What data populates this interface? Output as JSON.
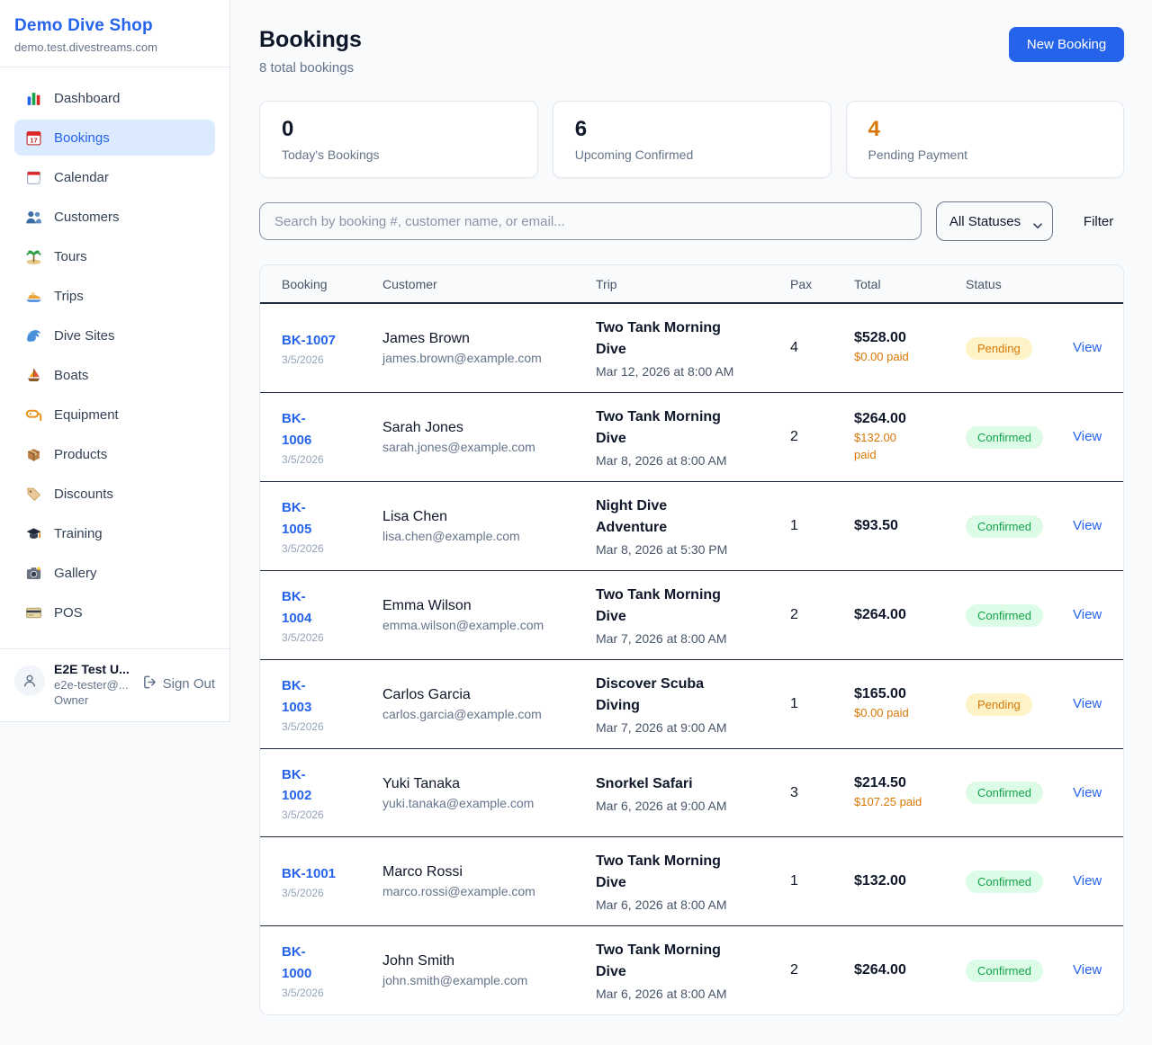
{
  "colors": {
    "primary": "#2563eb",
    "pending": "#d97706",
    "confirmed": "#16a34a"
  },
  "sidebar": {
    "shop_name": "Demo Dive Shop",
    "domain": "demo.test.divestreams.com",
    "items": [
      {
        "label": "Dashboard",
        "icon": "dashboard-icon",
        "active": false
      },
      {
        "label": "Bookings",
        "icon": "bookings-icon",
        "active": true
      },
      {
        "label": "Calendar",
        "icon": "calendar-icon",
        "active": false
      },
      {
        "label": "Customers",
        "icon": "customers-icon",
        "active": false
      },
      {
        "label": "Tours",
        "icon": "tours-icon",
        "active": false
      },
      {
        "label": "Trips",
        "icon": "trips-icon",
        "active": false
      },
      {
        "label": "Dive Sites",
        "icon": "dive-sites-icon",
        "active": false
      },
      {
        "label": "Boats",
        "icon": "boats-icon",
        "active": false
      },
      {
        "label": "Equipment",
        "icon": "equipment-icon",
        "active": false
      },
      {
        "label": "Products",
        "icon": "products-icon",
        "active": false
      },
      {
        "label": "Discounts",
        "icon": "discounts-icon",
        "active": false
      },
      {
        "label": "Training",
        "icon": "training-icon",
        "active": false
      },
      {
        "label": "Gallery",
        "icon": "gallery-icon",
        "active": false
      },
      {
        "label": "POS",
        "icon": "pos-icon",
        "active": false
      }
    ],
    "user": {
      "name": "E2E Test U...",
      "email": "e2e-tester@...",
      "role": "Owner",
      "sign_out_label": "Sign Out"
    }
  },
  "header": {
    "title": "Bookings",
    "subtitle": "8 total bookings",
    "new_booking_label": "New Booking"
  },
  "stats": [
    {
      "value": "0",
      "label": "Today's Bookings",
      "accent": "dark"
    },
    {
      "value": "6",
      "label": "Upcoming Confirmed",
      "accent": "dark"
    },
    {
      "value": "4",
      "label": "Pending Payment",
      "accent": "orange"
    }
  ],
  "filters": {
    "search_placeholder": "Search by booking #, customer name, or email...",
    "status_value": "All Statuses",
    "filter_label": "Filter"
  },
  "table": {
    "columns": [
      "Booking",
      "Customer",
      "Trip",
      "Pax",
      "Total",
      "Status"
    ],
    "rows": [
      {
        "id": "BK-1007",
        "date": "3/5/2026",
        "customer": "James Brown",
        "email": "james.brown@example.com",
        "trip": "Two Tank Morning Dive",
        "trip_time": "Mar 12, 2026 at 8:00 AM",
        "pax": "4",
        "total": "$528.00",
        "paid": "$0.00 paid",
        "status": "Pending",
        "action": "View"
      },
      {
        "id": "BK-\n1006",
        "date": "3/5/2026",
        "customer": "Sarah Jones",
        "email": "sarah.jones@example.com",
        "trip": "Two Tank Morning Dive",
        "trip_time": "Mar 8, 2026 at 8:00 AM",
        "pax": "2",
        "total": "$264.00",
        "paid": "$132.00\npaid",
        "status": "Confirmed",
        "action": "View"
      },
      {
        "id": "BK-\n1005",
        "date": "3/5/2026",
        "customer": "Lisa Chen",
        "email": "lisa.chen@example.com",
        "trip": "Night Dive Adventure",
        "trip_time": "Mar 8, 2026 at 5:30 PM",
        "pax": "1",
        "total": "$93.50",
        "paid": null,
        "status": "Confirmed",
        "action": "View"
      },
      {
        "id": "BK-\n1004",
        "date": "3/5/2026",
        "customer": "Emma Wilson",
        "email": "emma.wilson@example.com",
        "trip": "Two Tank Morning Dive",
        "trip_time": "Mar 7, 2026 at 8:00 AM",
        "pax": "2",
        "total": "$264.00",
        "paid": null,
        "status": "Confirmed",
        "action": "View"
      },
      {
        "id": "BK-\n1003",
        "date": "3/5/2026",
        "customer": "Carlos Garcia",
        "email": "carlos.garcia@example.com",
        "trip": "Discover Scuba Diving",
        "trip_time": "Mar 7, 2026 at 9:00 AM",
        "pax": "1",
        "total": "$165.00",
        "paid": "$0.00 paid",
        "status": "Pending",
        "action": "View"
      },
      {
        "id": "BK-\n1002",
        "date": "3/5/2026",
        "customer": "Yuki Tanaka",
        "email": "yuki.tanaka@example.com",
        "trip": "Snorkel Safari",
        "trip_time": "Mar 6, 2026 at 9:00 AM",
        "pax": "3",
        "total": "$214.50",
        "paid": "$107.25 paid",
        "status": "Confirmed",
        "action": "View"
      },
      {
        "id": "BK-1001",
        "date": "3/5/2026",
        "customer": "Marco Rossi",
        "email": "marco.rossi@example.com",
        "trip": "Two Tank Morning Dive",
        "trip_time": "Mar 6, 2026 at 8:00 AM",
        "pax": "1",
        "total": "$132.00",
        "paid": null,
        "status": "Confirmed",
        "action": "View"
      },
      {
        "id": "BK-\n1000",
        "date": "3/5/2026",
        "customer": "John Smith",
        "email": "john.smith@example.com",
        "trip": "Two Tank Morning Dive",
        "trip_time": "Mar 6, 2026 at 8:00 AM",
        "pax": "2",
        "total": "$264.00",
        "paid": null,
        "status": "Confirmed",
        "action": "View"
      }
    ]
  }
}
